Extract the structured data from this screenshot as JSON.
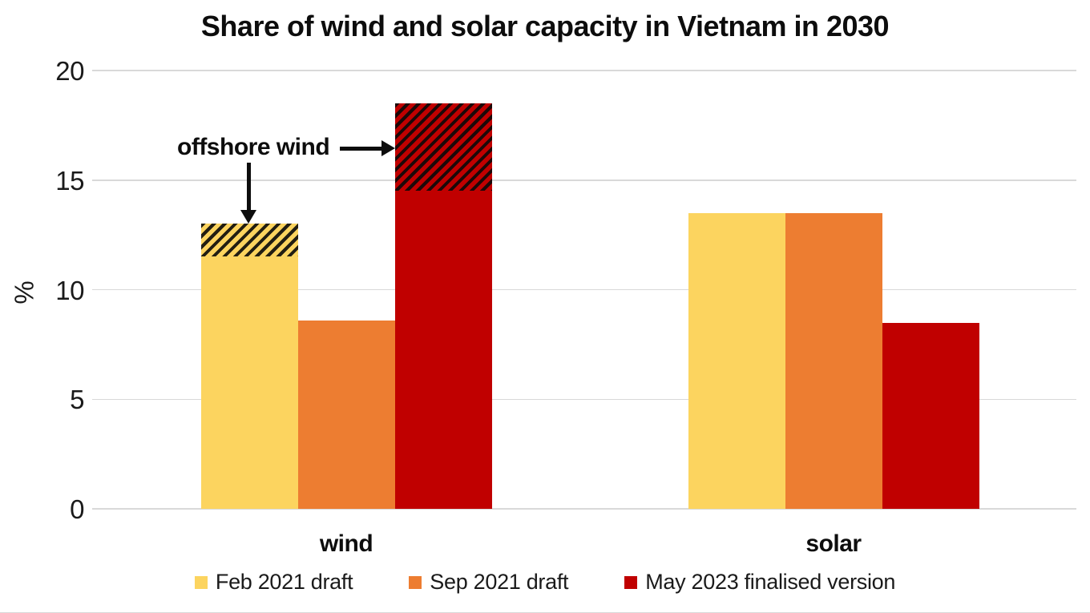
{
  "title": "Share of wind and solar capacity in Vietnam in 2030",
  "chart_data": {
    "type": "bar",
    "title": "Share of wind and solar capacity in Vietnam in 2030",
    "xlabel": "",
    "ylabel": "%",
    "ylim": [
      0,
      20
    ],
    "yticks": [
      0,
      5,
      10,
      15,
      20
    ],
    "grid": "horizontal",
    "legend_position": "bottom",
    "categories": [
      "wind",
      "solar"
    ],
    "series": [
      {
        "name": "Feb 2021 draft",
        "color": "#FCD45F",
        "values": [
          13.0,
          13.5
        ],
        "offshore_wind_hatched_portion": [
          1.5,
          0
        ]
      },
      {
        "name": "Sep 2021 draft",
        "color": "#ED7D31",
        "values": [
          8.6,
          13.5
        ],
        "offshore_wind_hatched_portion": [
          0,
          0
        ]
      },
      {
        "name": "May 2023 finalised version",
        "color": "#C00000",
        "values": [
          18.5,
          8.5
        ],
        "offshore_wind_hatched_portion": [
          4.0,
          0
        ]
      }
    ],
    "annotation": {
      "text": "offshore wind",
      "meaning": "hatched top segments of the Feb 2021 draft and May 2023 finalised wind bars"
    }
  },
  "colors": {
    "gridline": "#D9D9D9",
    "hatch": "#0A0A0A",
    "text": "#000000"
  }
}
